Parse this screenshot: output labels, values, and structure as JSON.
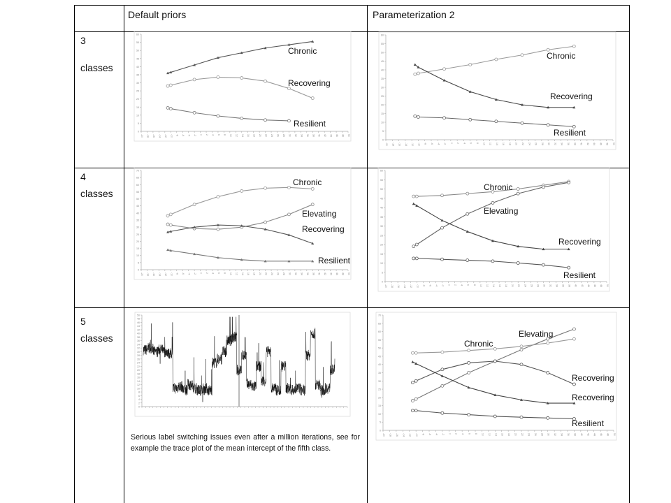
{
  "table": {
    "headers": [
      "",
      "Default priors",
      "Parameterization 2"
    ],
    "rows": [
      {
        "number": "3",
        "label": "classes"
      },
      {
        "number": "4",
        "label": "classes"
      },
      {
        "number": "5",
        "label": "classes"
      }
    ],
    "caption": "Serious label switching issues even after a million iterations, see for example the trace plot of the mean intercept of the fifth class."
  },
  "chart_data": [
    {
      "id": "default-3",
      "type": "line",
      "xlim": [
        -20,
        50
      ],
      "x_tick_step": 2,
      "ylim": [
        0,
        60
      ],
      "y_tick_step": 5,
      "x": [
        -11,
        -10,
        -2,
        6,
        14,
        22,
        30,
        38
      ],
      "series": [
        {
          "name": "Chronic",
          "values": [
            36,
            36.5,
            41,
            45.5,
            48.5,
            51.5,
            53.5,
            55.5
          ],
          "marker": "triangle",
          "color": "#555555"
        },
        {
          "name": "Recovering",
          "values": [
            28,
            28.5,
            32,
            33.5,
            33,
            31,
            26.5,
            20.5
          ],
          "marker": "circle",
          "color": "#999999"
        },
        {
          "name": "Resilient",
          "values": [
            14.5,
            14,
            11.5,
            9.5,
            8,
            7,
            6.5,
            null
          ],
          "marker": "circle",
          "color": "#777777"
        }
      ]
    },
    {
      "id": "param2-3",
      "type": "line",
      "xlim": [
        -20,
        50
      ],
      "x_tick_step": 2,
      "ylim": [
        0,
        60
      ],
      "y_tick_step": 5,
      "x": [
        -11,
        -10,
        -2,
        6,
        14,
        22,
        30,
        38
      ],
      "series": [
        {
          "name": "Chronic",
          "values": [
            37.5,
            38,
            40.5,
            43,
            46,
            48.5,
            51.5,
            53.5
          ],
          "marker": "circle",
          "color": "#999999"
        },
        {
          "name": "Recovering",
          "values": [
            43,
            41.5,
            34,
            27.5,
            23,
            20,
            18.5,
            18.5
          ],
          "marker": "triangle",
          "color": "#444444"
        },
        {
          "name": "Resilient",
          "values": [
            13.5,
            13,
            12.5,
            11.5,
            10.5,
            9.5,
            8.5,
            7.5
          ],
          "marker": "circle",
          "color": "#666666"
        }
      ]
    },
    {
      "id": "default-4",
      "type": "line",
      "xlim": [
        -20,
        50
      ],
      "x_tick_step": 2,
      "ylim": [
        0,
        70
      ],
      "y_tick_step": 5,
      "x": [
        -11,
        -10,
        -2,
        6,
        14,
        22,
        30,
        38
      ],
      "series": [
        {
          "name": "Chronic",
          "values": [
            38,
            39,
            46,
            51.5,
            55.5,
            57.5,
            58,
            57
          ],
          "marker": "circle",
          "color": "#999999"
        },
        {
          "name": "Elevating",
          "values": [
            32,
            31.5,
            29,
            28.5,
            30,
            33.5,
            39,
            46
          ],
          "marker": "circle",
          "color": "#888888"
        },
        {
          "name": "Recovering",
          "values": [
            26.5,
            27,
            30,
            31.5,
            31,
            28.5,
            24.5,
            18.5
          ],
          "marker": "triangle",
          "color": "#555555"
        },
        {
          "name": "Resilient",
          "values": [
            14,
            13.5,
            11,
            8.5,
            7,
            6,
            6,
            6
          ],
          "marker": "triangle",
          "color": "#777777"
        }
      ]
    },
    {
      "id": "param2-4",
      "type": "line",
      "xlim": [
        -20,
        50
      ],
      "x_tick_step": 2,
      "ylim": [
        0,
        60
      ],
      "y_tick_step": 5,
      "x": [
        -11,
        -10,
        -2,
        6,
        14,
        22,
        30,
        38
      ],
      "series": [
        {
          "name": "Chronic",
          "values": [
            46,
            46,
            46.5,
            47.5,
            48.5,
            50,
            52,
            54
          ],
          "marker": "circle",
          "color": "#888888"
        },
        {
          "name": "Elevating",
          "values": [
            19,
            20,
            29,
            36.5,
            42.5,
            47.5,
            51,
            53.5
          ],
          "marker": "circle",
          "color": "#666666"
        },
        {
          "name": "Recovering",
          "values": [
            42,
            41,
            33,
            27,
            22,
            19,
            17.5,
            17.5
          ],
          "marker": "triangle",
          "color": "#444444"
        },
        {
          "name": "Resilient",
          "values": [
            12.5,
            12.5,
            12,
            11.5,
            11,
            10,
            9,
            7.5
          ],
          "marker": "circle",
          "color": "#555555"
        }
      ]
    },
    {
      "id": "default-5-trace",
      "type": "line",
      "ylim": [
        0,
        50
      ],
      "y_tick_step": 2,
      "series": [
        {
          "levels": [
            31,
            32,
            30,
            31,
            30,
            29,
            10,
            11,
            9,
            12,
            10,
            9,
            10,
            9,
            24,
            26,
            30,
            36,
            38,
            20,
            28,
            12,
            11,
            22,
            14,
            30,
            10,
            9,
            22,
            10,
            9,
            10,
            9,
            28,
            40,
            12,
            9,
            10,
            20
          ],
          "color": "#111111"
        }
      ]
    },
    {
      "id": "param2-5",
      "type": "line",
      "xlim": [
        -20,
        50
      ],
      "x_tick_step": 2,
      "ylim": [
        0,
        70
      ],
      "y_tick_step": 5,
      "x": [
        -11,
        -10,
        -2,
        6,
        14,
        22,
        30,
        38
      ],
      "series": [
        {
          "name": "Elevating",
          "values": [
            18,
            19,
            27,
            35,
            42,
            49,
            55.5,
            61.5
          ],
          "marker": "circle",
          "color": "#777777"
        },
        {
          "name": "Chronic",
          "values": [
            47,
            47,
            47.5,
            48.5,
            49.5,
            51,
            53,
            55.5
          ],
          "marker": "circle",
          "color": "#999999"
        },
        {
          "name": "Recovering",
          "values": [
            29,
            30,
            37,
            41,
            42,
            40,
            35,
            28
          ],
          "marker": "circle",
          "color": "#555555"
        },
        {
          "name": "Recovering",
          "values": [
            41.5,
            40.5,
            33,
            26,
            21.5,
            18.5,
            16.5,
            16.5
          ],
          "marker": "triangle",
          "color": "#444444"
        },
        {
          "name": "Resilient",
          "values": [
            12,
            12,
            10.5,
            9.5,
            8.5,
            8,
            7.5,
            7
          ],
          "marker": "circle",
          "color": "#555555"
        }
      ]
    }
  ]
}
